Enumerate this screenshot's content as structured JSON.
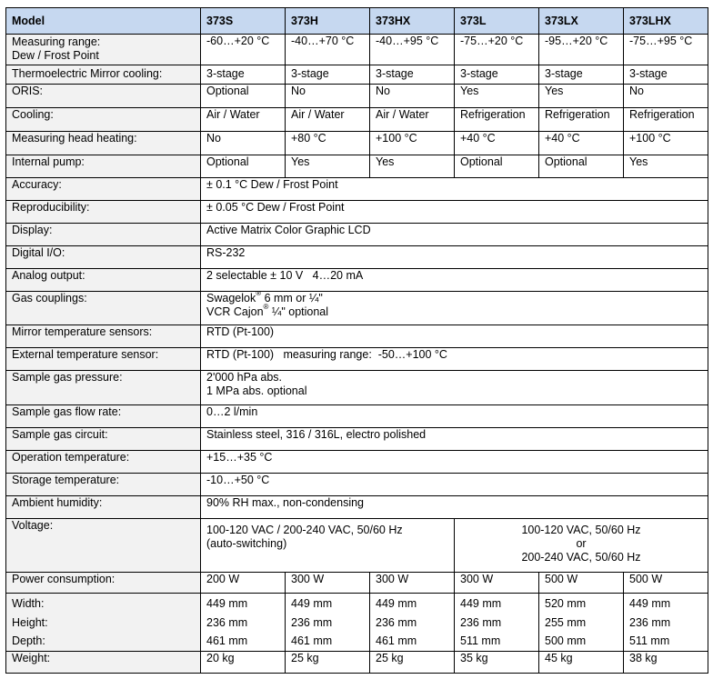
{
  "header": {
    "model": "Model",
    "cols": [
      "373S",
      "373H",
      "373HX",
      "373L",
      "373LX",
      "373LHX"
    ]
  },
  "rows": {
    "range_label_1": "Measuring range:",
    "range_label_2": "Dew / Frost Point",
    "range": [
      "-60…+20 °C",
      "-40…+70 °C",
      "-40…+95 °C",
      "-75…+20 °C",
      "-95…+20 °C",
      "-75…+95 °C"
    ],
    "mirror_label": "Thermoelectric Mirror cooling:",
    "mirror": [
      "3-stage",
      "3-stage",
      "3-stage",
      "3-stage",
      "3-stage",
      "3-stage"
    ],
    "oris_label": "ORIS:",
    "oris": [
      "Optional",
      "No",
      "No",
      "Yes",
      "Yes",
      "No"
    ],
    "cooling_label": "Cooling:",
    "cooling": [
      "Air / Water",
      "Air / Water",
      "Air / Water",
      "Refrigeration",
      "Refrigeration",
      "Refrigeration"
    ],
    "heating_label": "Measuring head heating:",
    "heating": [
      "No",
      "+80 °C",
      "+100 °C",
      "+40 °C",
      "+40 °C",
      "+100 °C"
    ],
    "pump_label": "Internal pump:",
    "pump": [
      "Optional",
      "Yes",
      "Yes",
      "Optional",
      "Optional",
      "Yes"
    ],
    "accuracy_label": "Accuracy:",
    "accuracy": "± 0.1 °C Dew / Frost Point",
    "repro_label": "Reproducibility:",
    "repro": "± 0.05 °C Dew / Frost Point",
    "display_label": "Display:",
    "display": "Active Matrix Color Graphic LCD",
    "dio_label": "Digital I/O:",
    "dio": "RS-232",
    "analog_label": "Analog output:",
    "analog": "2 selectable ± 10 V   4…20 mA",
    "gas_label": "Gas couplings:",
    "gas_1a": "Swagelok",
    "gas_1b": " 6 mm or ¼\"",
    "gas_2a": "VCR Cajon",
    "gas_2b": " ¼\" optional",
    "reg": "®",
    "mts_label": "Mirror temperature sensors:",
    "mts": "RTD (Pt-100)",
    "ets_label": "External temperature sensor:",
    "ets": "RTD (Pt-100)   measuring range:  -50…+100 °C",
    "pressure_label": "Sample gas pressure:",
    "pressure_1": "2'000 hPa abs.",
    "pressure_2": "1 MPa abs. optional",
    "flow_label": "Sample gas flow rate:",
    "flow": "0…2 l/min",
    "circuit_label": "Sample gas circuit:",
    "circuit": "Stainless steel, 316 / 316L, electro polished",
    "optemp_label": "Operation temperature:",
    "optemp": "+15…+35 °C",
    "stemp_label": "Storage temperature:",
    "stemp": "-10…+50 °C",
    "humid_label": "Ambient humidity:",
    "humid": "90% RH max., non-condensing",
    "volt_label": "Voltage:",
    "volt_left_1": "100-120 VAC / 200-240 VAC, 50/60 Hz",
    "volt_left_2": "(auto-switching)",
    "volt_right_1": "100-120 VAC, 50/60 Hz",
    "volt_right_2": "or",
    "volt_right_3": "200-240 VAC, 50/60 Hz",
    "power_label": "Power consumption:",
    "power": [
      "200 W",
      "300 W",
      "300 W",
      "300 W",
      "500 W",
      "500 W"
    ],
    "width_label": "Width:",
    "width": [
      "449 mm",
      "449 mm",
      "449 mm",
      "449 mm",
      "520 mm",
      "449 mm"
    ],
    "height_label": "Height:",
    "height": [
      "236 mm",
      "236 mm",
      "236 mm",
      "236 mm",
      "255 mm",
      "236 mm"
    ],
    "depth_label": "Depth:",
    "depth": [
      "461 mm",
      "461 mm",
      "461 mm",
      "511 mm",
      "500 mm",
      "511 mm"
    ],
    "weight_label": "Weight:",
    "weight": [
      "20 kg",
      "25 kg",
      "25 kg",
      "35 kg",
      "45 kg",
      "38 kg"
    ]
  }
}
